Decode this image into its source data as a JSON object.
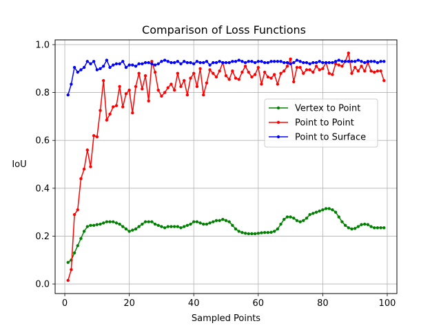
{
  "chart_data": {
    "type": "line",
    "title": "Comparison of Loss Functions",
    "xlabel": "Sampled Points",
    "ylabel": "IoU",
    "xlim": [
      -3,
      103
    ],
    "ylim": [
      -0.04,
      1.02
    ],
    "xticks": [
      0,
      20,
      40,
      60,
      80,
      100
    ],
    "yticks": [
      0.0,
      0.2,
      0.4,
      0.6,
      0.8,
      1.0
    ],
    "xtick_labels": [
      "0",
      "20",
      "40",
      "60",
      "80",
      "100"
    ],
    "ytick_labels": [
      "0.0",
      "0.2",
      "0.4",
      "0.6",
      "0.8",
      "1.0"
    ],
    "grid": true,
    "legend_position": "center-right",
    "x": [
      1,
      2,
      3,
      4,
      5,
      6,
      7,
      8,
      9,
      10,
      11,
      12,
      13,
      14,
      15,
      16,
      17,
      18,
      19,
      20,
      21,
      22,
      23,
      24,
      25,
      26,
      27,
      28,
      29,
      30,
      31,
      32,
      33,
      34,
      35,
      36,
      37,
      38,
      39,
      40,
      41,
      42,
      43,
      44,
      45,
      46,
      47,
      48,
      49,
      50,
      51,
      52,
      53,
      54,
      55,
      56,
      57,
      58,
      59,
      60,
      61,
      62,
      63,
      64,
      65,
      66,
      67,
      68,
      69,
      70,
      71,
      72,
      73,
      74,
      75,
      76,
      77,
      78,
      79,
      80,
      81,
      82,
      83,
      84,
      85,
      86,
      87,
      88,
      89,
      90,
      91,
      92,
      93,
      94,
      95,
      96,
      97,
      98,
      99
    ],
    "series": [
      {
        "name": "Vertex to Point",
        "color": "#008000",
        "values": [
          0.09,
          0.1,
          0.13,
          0.16,
          0.19,
          0.22,
          0.24,
          0.245,
          0.245,
          0.248,
          0.25,
          0.255,
          0.26,
          0.26,
          0.26,
          0.255,
          0.25,
          0.24,
          0.23,
          0.22,
          0.225,
          0.23,
          0.24,
          0.25,
          0.26,
          0.26,
          0.26,
          0.25,
          0.245,
          0.24,
          0.235,
          0.24,
          0.24,
          0.24,
          0.24,
          0.235,
          0.24,
          0.245,
          0.25,
          0.26,
          0.26,
          0.255,
          0.25,
          0.25,
          0.255,
          0.26,
          0.265,
          0.265,
          0.27,
          0.265,
          0.26,
          0.245,
          0.23,
          0.22,
          0.215,
          0.212,
          0.21,
          0.21,
          0.21,
          0.212,
          0.214,
          0.215,
          0.215,
          0.216,
          0.22,
          0.23,
          0.25,
          0.27,
          0.28,
          0.28,
          0.275,
          0.265,
          0.26,
          0.265,
          0.275,
          0.29,
          0.295,
          0.3,
          0.305,
          0.31,
          0.315,
          0.315,
          0.31,
          0.3,
          0.28,
          0.26,
          0.245,
          0.235,
          0.23,
          0.232,
          0.24,
          0.248,
          0.25,
          0.248,
          0.24,
          0.235,
          0.235,
          0.235,
          0.235
        ]
      },
      {
        "name": "Point to Point",
        "color": "#ff0000",
        "values": [
          0.015,
          0.06,
          0.29,
          0.31,
          0.44,
          0.48,
          0.56,
          0.49,
          0.62,
          0.615,
          0.725,
          0.85,
          0.685,
          0.71,
          0.74,
          0.745,
          0.825,
          0.74,
          0.795,
          0.81,
          0.715,
          0.825,
          0.88,
          0.815,
          0.87,
          0.765,
          0.93,
          0.885,
          0.81,
          0.785,
          0.8,
          0.82,
          0.835,
          0.81,
          0.88,
          0.825,
          0.85,
          0.79,
          0.86,
          0.88,
          0.825,
          0.9,
          0.79,
          0.84,
          0.895,
          0.88,
          0.865,
          0.89,
          0.925,
          0.87,
          0.855,
          0.89,
          0.86,
          0.855,
          0.885,
          0.91,
          0.885,
          0.865,
          0.875,
          0.905,
          0.835,
          0.885,
          0.865,
          0.86,
          0.875,
          0.835,
          0.88,
          0.89,
          0.91,
          0.94,
          0.845,
          0.905,
          0.905,
          0.88,
          0.895,
          0.895,
          0.885,
          0.91,
          0.895,
          0.9,
          0.925,
          0.88,
          0.875,
          0.92,
          0.915,
          0.91,
          0.93,
          0.965,
          0.88,
          0.905,
          0.89,
          0.91,
          0.89,
          0.925,
          0.89,
          0.885,
          0.89,
          0.89,
          0.85
        ]
      },
      {
        "name": "Point to Surface",
        "color": "#0000ff",
        "values": [
          0.79,
          0.835,
          0.905,
          0.885,
          0.895,
          0.905,
          0.93,
          0.92,
          0.93,
          0.895,
          0.9,
          0.91,
          0.935,
          0.905,
          0.915,
          0.92,
          0.92,
          0.93,
          0.905,
          0.915,
          0.915,
          0.91,
          0.92,
          0.92,
          0.925,
          0.925,
          0.92,
          0.915,
          0.92,
          0.93,
          0.935,
          0.93,
          0.925,
          0.925,
          0.93,
          0.92,
          0.93,
          0.925,
          0.925,
          0.92,
          0.93,
          0.925,
          0.925,
          0.93,
          0.915,
          0.925,
          0.925,
          0.93,
          0.925,
          0.925,
          0.925,
          0.93,
          0.93,
          0.935,
          0.93,
          0.925,
          0.93,
          0.93,
          0.925,
          0.93,
          0.93,
          0.925,
          0.925,
          0.93,
          0.93,
          0.93,
          0.93,
          0.925,
          0.925,
          0.92,
          0.925,
          0.935,
          0.93,
          0.925,
          0.925,
          0.92,
          0.925,
          0.925,
          0.93,
          0.925,
          0.925,
          0.925,
          0.925,
          0.93,
          0.935,
          0.93,
          0.93,
          0.93,
          0.93,
          0.93,
          0.935,
          0.93,
          0.925,
          0.93,
          0.93,
          0.93,
          0.925,
          0.93,
          0.93
        ]
      }
    ]
  }
}
